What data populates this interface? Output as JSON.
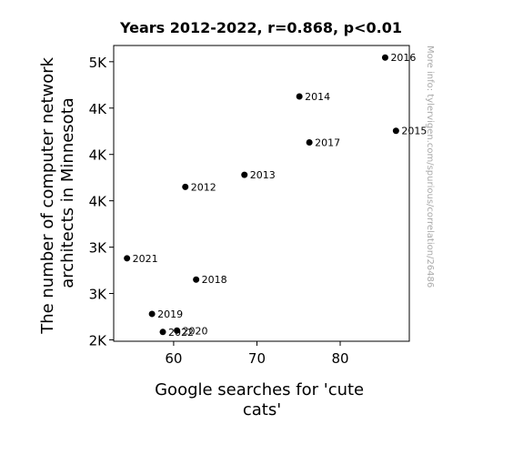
{
  "chart_data": {
    "type": "scatter",
    "title": "Years 2012-2022, r=0.868, p<0.01",
    "xlabel_lines": [
      "Google searches for 'cute",
      "cats'"
    ],
    "ylabel_lines": [
      "The number of computer network",
      "architects in Minnesota"
    ],
    "x_ticks": [
      60,
      70,
      80
    ],
    "y_ticks": [
      {
        "value": 2000,
        "label": "2K"
      },
      {
        "value": 2500,
        "label": "3K"
      },
      {
        "value": 3000,
        "label": "3K"
      },
      {
        "value": 3500,
        "label": "4K"
      },
      {
        "value": 4000,
        "label": "4K"
      },
      {
        "value": 4500,
        "label": "4K"
      },
      {
        "value": 5000,
        "label": "5K"
      }
    ],
    "xlim": [
      52.8,
      88.3
    ],
    "ylim": [
      1985,
      5175
    ],
    "points": [
      {
        "label": "2012",
        "x": 61.4,
        "y": 3650
      },
      {
        "label": "2013",
        "x": 68.5,
        "y": 3780
      },
      {
        "label": "2014",
        "x": 75.1,
        "y": 4625
      },
      {
        "label": "2015",
        "x": 86.7,
        "y": 4255
      },
      {
        "label": "2016",
        "x": 85.4,
        "y": 5045
      },
      {
        "label": "2017",
        "x": 76.3,
        "y": 4130
      },
      {
        "label": "2018",
        "x": 62.7,
        "y": 2650
      },
      {
        "label": "2019",
        "x": 57.4,
        "y": 2280
      },
      {
        "label": "2020",
        "x": 60.4,
        "y": 2100
      },
      {
        "label": "2021",
        "x": 54.4,
        "y": 2880
      },
      {
        "label": "2022",
        "x": 58.7,
        "y": 2085
      }
    ],
    "point_color": "#000000",
    "grid": false,
    "watermark": "More info: tylervigen.com/spurious/correlation/26486"
  }
}
